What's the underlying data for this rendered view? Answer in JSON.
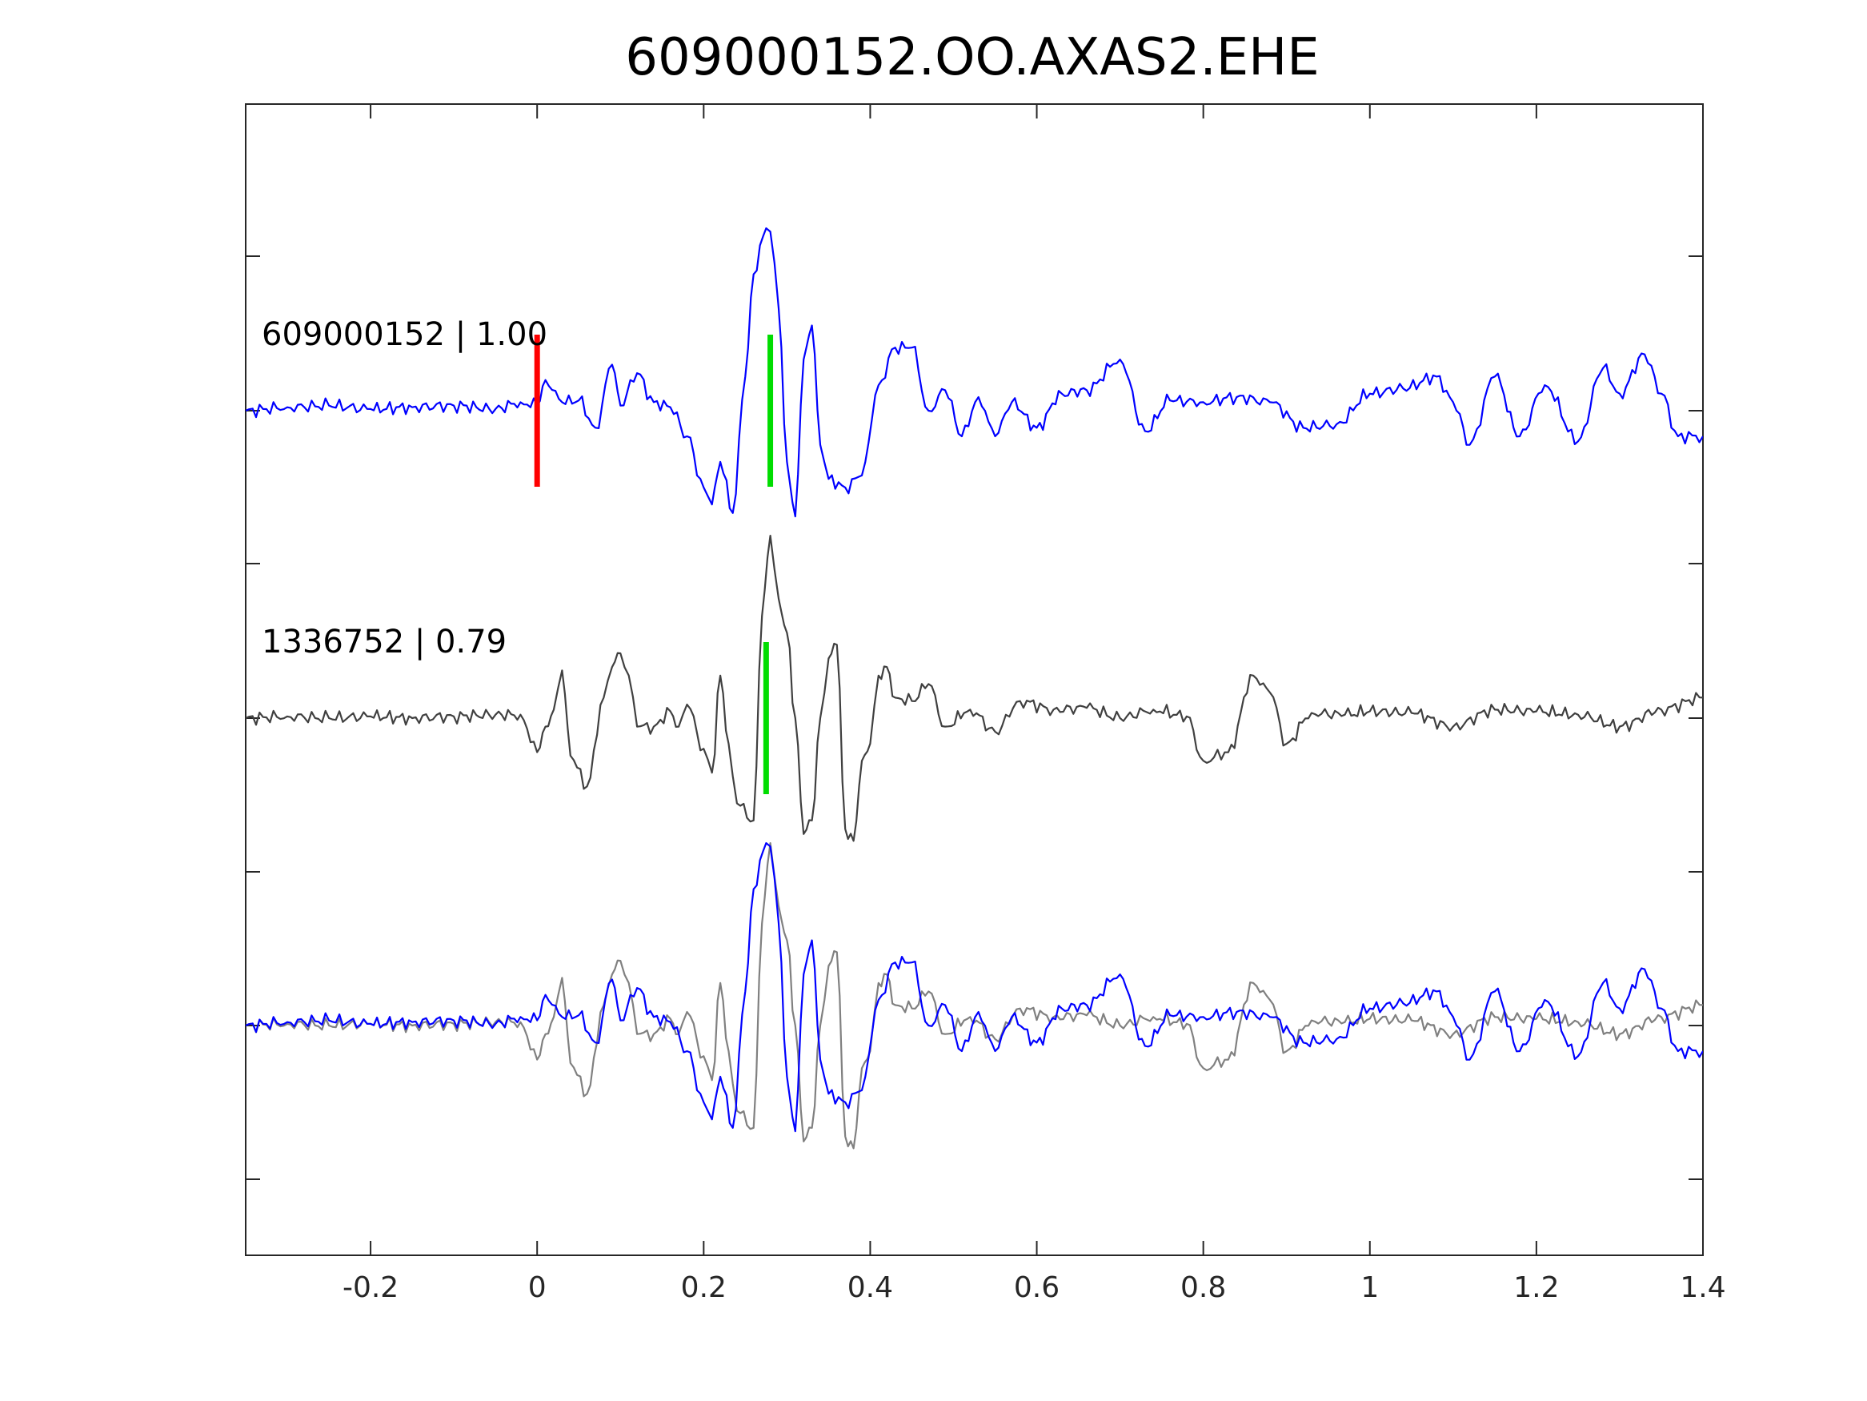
{
  "chart_data": {
    "type": "line",
    "title": "609000152.OO.AXAS2.EHE",
    "xlabel": "",
    "ylabel": "",
    "xlim": [
      -0.35,
      1.4
    ],
    "x_ticks": [
      -0.2,
      0,
      0.2,
      0.4,
      0.6,
      0.8,
      1,
      1.2,
      1.4
    ],
    "x_tick_labels": [
      "-0.2",
      "0",
      "0.2",
      "0.4",
      "0.6",
      "0.8",
      "1",
      "1.2",
      "1.4"
    ],
    "y_ticks_shown_without_labels": true,
    "grid": false,
    "legend": "none",
    "colors": {
      "template_trace": "#0000ff",
      "matched_trace": "#404040",
      "matched_trace_overlay": "#808080",
      "p_pick": "#ff0000",
      "s_pick": "#00dd00"
    },
    "panels": [
      {
        "label": "609000152 | 1.00",
        "series": [
          {
            "color": "#0000ff",
            "x": [
              -0.35,
              -0.3,
              -0.25,
              -0.2,
              -0.15,
              -0.1,
              -0.05,
              -0.02,
              0,
              0.01,
              0.03,
              0.05,
              0.07,
              0.09,
              0.1,
              0.12,
              0.14,
              0.16,
              0.18,
              0.2,
              0.21,
              0.22,
              0.235,
              0.25,
              0.26,
              0.275,
              0.28,
              0.29,
              0.3,
              0.31,
              0.32,
              0.33,
              0.34,
              0.35,
              0.37,
              0.39,
              0.41,
              0.43,
              0.45,
              0.47,
              0.49,
              0.51,
              0.53,
              0.55,
              0.57,
              0.6,
              0.63,
              0.66,
              0.7,
              0.73,
              0.76,
              0.8,
              0.84,
              0.88,
              0.92,
              0.96,
              1.0,
              1.04,
              1.08,
              1.1,
              1.12,
              1.15,
              1.18,
              1.21,
              1.25,
              1.28,
              1.3,
              1.33,
              1.35,
              1.37,
              1.4
            ],
            "y": [
              0.0,
              0.02,
              0.03,
              0.01,
              0.02,
              0.03,
              0.01,
              0.05,
              0.03,
              0.18,
              0.05,
              0.06,
              -0.1,
              0.27,
              0.03,
              0.22,
              0.05,
              0.02,
              -0.15,
              -0.45,
              -0.55,
              -0.3,
              -0.6,
              0.2,
              0.8,
              1.07,
              1.05,
              0.6,
              -0.3,
              -0.62,
              0.3,
              0.5,
              -0.2,
              -0.4,
              -0.45,
              -0.38,
              0.15,
              0.37,
              0.37,
              0.0,
              0.12,
              -0.15,
              0.08,
              -0.15,
              0.05,
              -0.1,
              0.1,
              0.12,
              0.3,
              -0.12,
              0.06,
              0.05,
              0.08,
              0.05,
              -0.1,
              -0.08,
              0.1,
              0.13,
              0.2,
              0.05,
              -0.2,
              0.2,
              -0.15,
              0.15,
              -0.18,
              0.25,
              0.1,
              0.33,
              0.1,
              -0.15,
              -0.15
            ]
          }
        ],
        "markers": [
          {
            "kind": "pick",
            "color": "#ff0000",
            "x": 0
          },
          {
            "kind": "pick",
            "color": "#00dd00",
            "x": 0.28
          }
        ]
      },
      {
        "label": "1336752 | 0.79",
        "series": [
          {
            "color": "#404040",
            "x": [
              -0.35,
              -0.3,
              -0.25,
              -0.2,
              -0.15,
              -0.1,
              -0.05,
              -0.02,
              0,
              0.01,
              0.02,
              0.03,
              0.04,
              0.06,
              0.08,
              0.09,
              0.1,
              0.11,
              0.12,
              0.14,
              0.16,
              0.17,
              0.18,
              0.2,
              0.21,
              0.22,
              0.23,
              0.24,
              0.26,
              0.27,
              0.28,
              0.29,
              0.3,
              0.31,
              0.32,
              0.33,
              0.34,
              0.35,
              0.36,
              0.37,
              0.38,
              0.39,
              0.4,
              0.41,
              0.42,
              0.43,
              0.45,
              0.47,
              0.49,
              0.52,
              0.55,
              0.58,
              0.62,
              0.66,
              0.7,
              0.74,
              0.78,
              0.8,
              0.83,
              0.86,
              0.88,
              0.9,
              0.93,
              0.97,
              1.0,
              1.05,
              1.1,
              1.15,
              1.2,
              1.25,
              1.3,
              1.35,
              1.4
            ],
            "y": [
              0.0,
              0.01,
              0.0,
              0.01,
              0.0,
              0.01,
              0.02,
              0.02,
              -0.2,
              -0.05,
              0.05,
              0.28,
              -0.22,
              -0.4,
              0.12,
              0.3,
              0.38,
              0.25,
              -0.05,
              -0.05,
              0.04,
              -0.05,
              0.08,
              -0.18,
              -0.32,
              0.25,
              -0.15,
              -0.5,
              -0.6,
              0.6,
              1.07,
              0.7,
              0.5,
              0.0,
              -0.68,
              -0.6,
              0.0,
              0.35,
              0.43,
              -0.65,
              -0.72,
              -0.25,
              -0.15,
              0.25,
              0.3,
              0.12,
              0.1,
              0.2,
              -0.05,
              0.05,
              -0.08,
              0.1,
              0.05,
              0.06,
              0.0,
              0.05,
              0.01,
              -0.25,
              -0.2,
              0.25,
              0.15,
              -0.15,
              0.03,
              0.02,
              0.04,
              0.03,
              -0.05,
              0.05,
              0.04,
              0.02,
              -0.05,
              0.05,
              0.12
            ]
          }
        ],
        "markers": [
          {
            "kind": "pick",
            "color": "#00dd00",
            "x": 0.275
          }
        ]
      },
      {
        "label": "",
        "overlay": true,
        "series": [
          {
            "color": "#808080",
            "copy_of": 1
          },
          {
            "color": "#0000ff",
            "copy_of": 0
          }
        ],
        "markers": []
      }
    ]
  }
}
